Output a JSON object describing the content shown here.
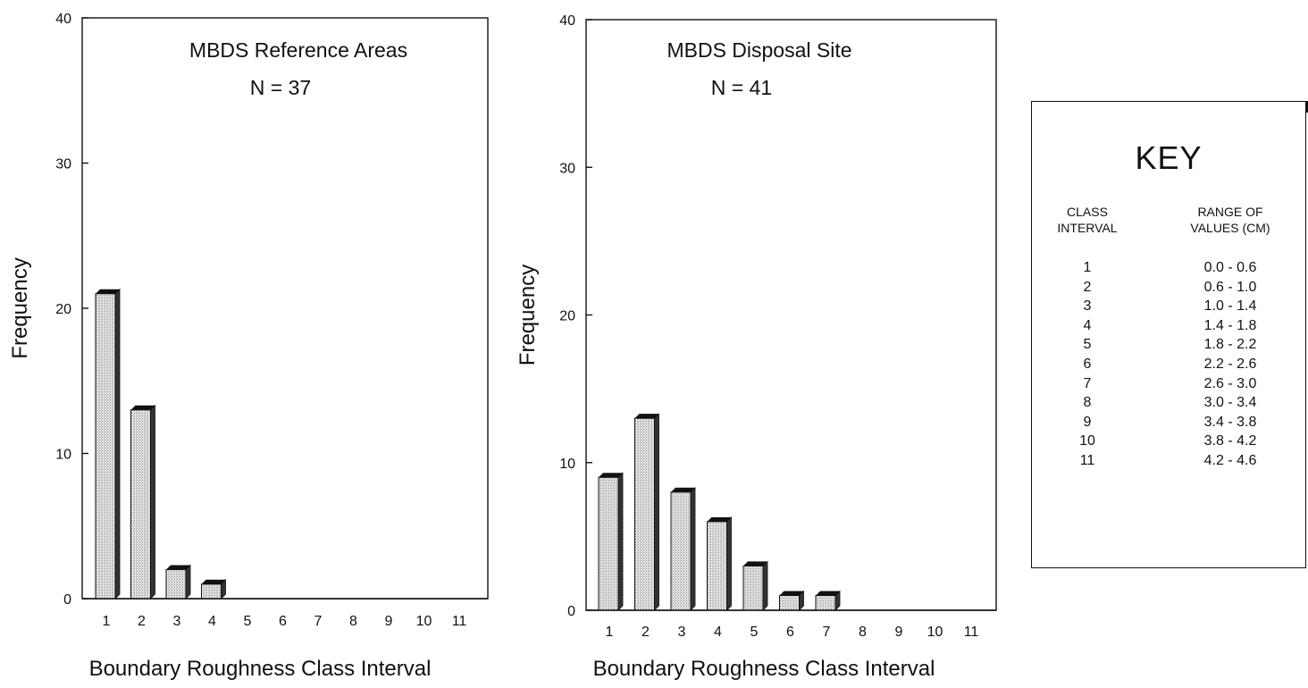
{
  "chart_data": [
    {
      "type": "bar",
      "title": "MBDS Reference Areas",
      "subtitle": "N = 37",
      "xlabel": "Boundary Roughness Class Interval",
      "ylabel": "Frequency",
      "ylim": [
        0,
        40
      ],
      "yticks": [
        "0",
        "10",
        "20",
        "30",
        "40"
      ],
      "categories": [
        "1",
        "2",
        "3",
        "4",
        "5",
        "6",
        "7",
        "8",
        "9",
        "10",
        "11"
      ],
      "values": [
        21,
        13,
        2,
        1,
        0,
        0,
        0,
        0,
        0,
        0,
        0
      ],
      "grid": false
    },
    {
      "type": "bar",
      "title": "MBDS Disposal Site",
      "subtitle": "N = 41",
      "xlabel": "Boundary Roughness Class Interval",
      "ylabel": "Frequency",
      "ylim": [
        0,
        40
      ],
      "yticks": [
        "0",
        "10",
        "20",
        "30",
        "40"
      ],
      "categories": [
        "1",
        "2",
        "3",
        "4",
        "5",
        "6",
        "7",
        "8",
        "9",
        "10",
        "11"
      ],
      "values": [
        9,
        13,
        8,
        6,
        3,
        1,
        1,
        0,
        0,
        0,
        0
      ],
      "grid": false
    }
  ],
  "key": {
    "title": "KEY",
    "col_class_header": [
      "CLASS",
      "INTERVAL"
    ],
    "col_range_header": [
      "RANGE OF",
      "VALUES (CM)"
    ],
    "rows": [
      {
        "class": "1",
        "range": "0.0 - 0.6"
      },
      {
        "class": "2",
        "range": "0.6 - 1.0"
      },
      {
        "class": "3",
        "range": "1.0 - 1.4"
      },
      {
        "class": "4",
        "range": "1.4 - 1.8"
      },
      {
        "class": "5",
        "range": "1.8 - 2.2"
      },
      {
        "class": "6",
        "range": "2.2 - 2.6"
      },
      {
        "class": "7",
        "range": "2.6 - 3.0"
      },
      {
        "class": "8",
        "range": "3.0 - 3.4"
      },
      {
        "class": "9",
        "range": "3.4 - 3.8"
      },
      {
        "class": "10",
        "range": "3.8 - 4.2"
      },
      {
        "class": "11",
        "range": "4.2 - 4.6"
      }
    ]
  },
  "colors": {
    "bar_fill": "#d2d2d2",
    "bar_side": "#333333",
    "bar_top": "#111111"
  }
}
